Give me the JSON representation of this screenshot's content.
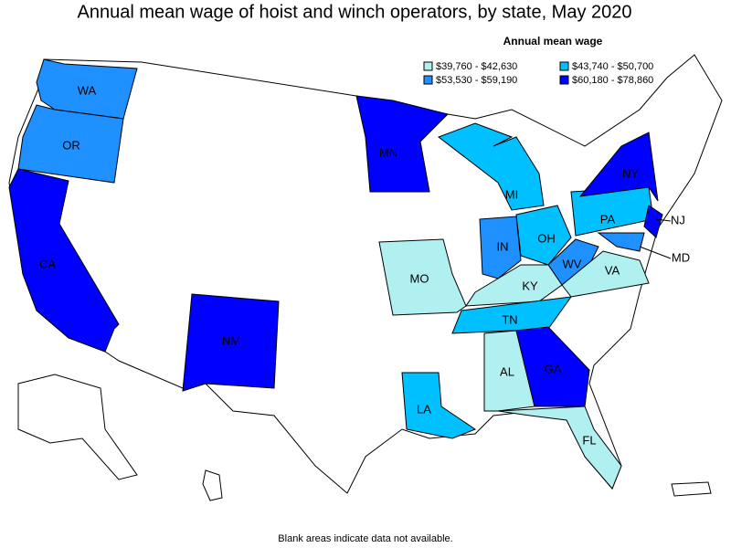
{
  "title": "Annual mean wage of hoist and winch operators, by state, May 2020",
  "legend": {
    "title": "Annual mean wage",
    "entries": [
      {
        "label": "$39,760 - $42,630",
        "color": "#b0f0f0"
      },
      {
        "label": "$43,740 - $50,700",
        "color": "#00c0ff"
      },
      {
        "label": "$53,530 - $59,190",
        "color": "#1e90ff"
      },
      {
        "label": "$60,180 - $78,860",
        "color": "#0000ff"
      }
    ]
  },
  "states": [
    {
      "label": "WA",
      "color": "#1e90ff"
    },
    {
      "label": "OR",
      "color": "#1e90ff"
    },
    {
      "label": "CA",
      "color": "#0000ff"
    },
    {
      "label": "NM",
      "color": "#0000ff"
    },
    {
      "label": "MN",
      "color": "#0000ff"
    },
    {
      "label": "MI",
      "color": "#00c0ff"
    },
    {
      "label": "OH",
      "color": "#00c0ff"
    },
    {
      "label": "PA",
      "color": "#00c0ff"
    },
    {
      "label": "NY",
      "color": "#0000ff"
    },
    {
      "label": "NJ",
      "color": "#0000ff"
    },
    {
      "label": "IN",
      "color": "#1e90ff"
    },
    {
      "label": "WV",
      "color": "#1e90ff"
    },
    {
      "label": "MD",
      "color": "#1e90ff"
    },
    {
      "label": "VA",
      "color": "#b0f0f0"
    },
    {
      "label": "KY",
      "color": "#b0f0f0"
    },
    {
      "label": "TN",
      "color": "#00c0ff"
    },
    {
      "label": "MO",
      "color": "#b0f0f0"
    },
    {
      "label": "AL",
      "color": "#b0f0f0"
    },
    {
      "label": "GA",
      "color": "#0000ff"
    },
    {
      "label": "FL",
      "color": "#b0f0f0"
    },
    {
      "label": "LA",
      "color": "#00c0ff"
    }
  ],
  "footnote": "Blank areas indicate data not available."
}
